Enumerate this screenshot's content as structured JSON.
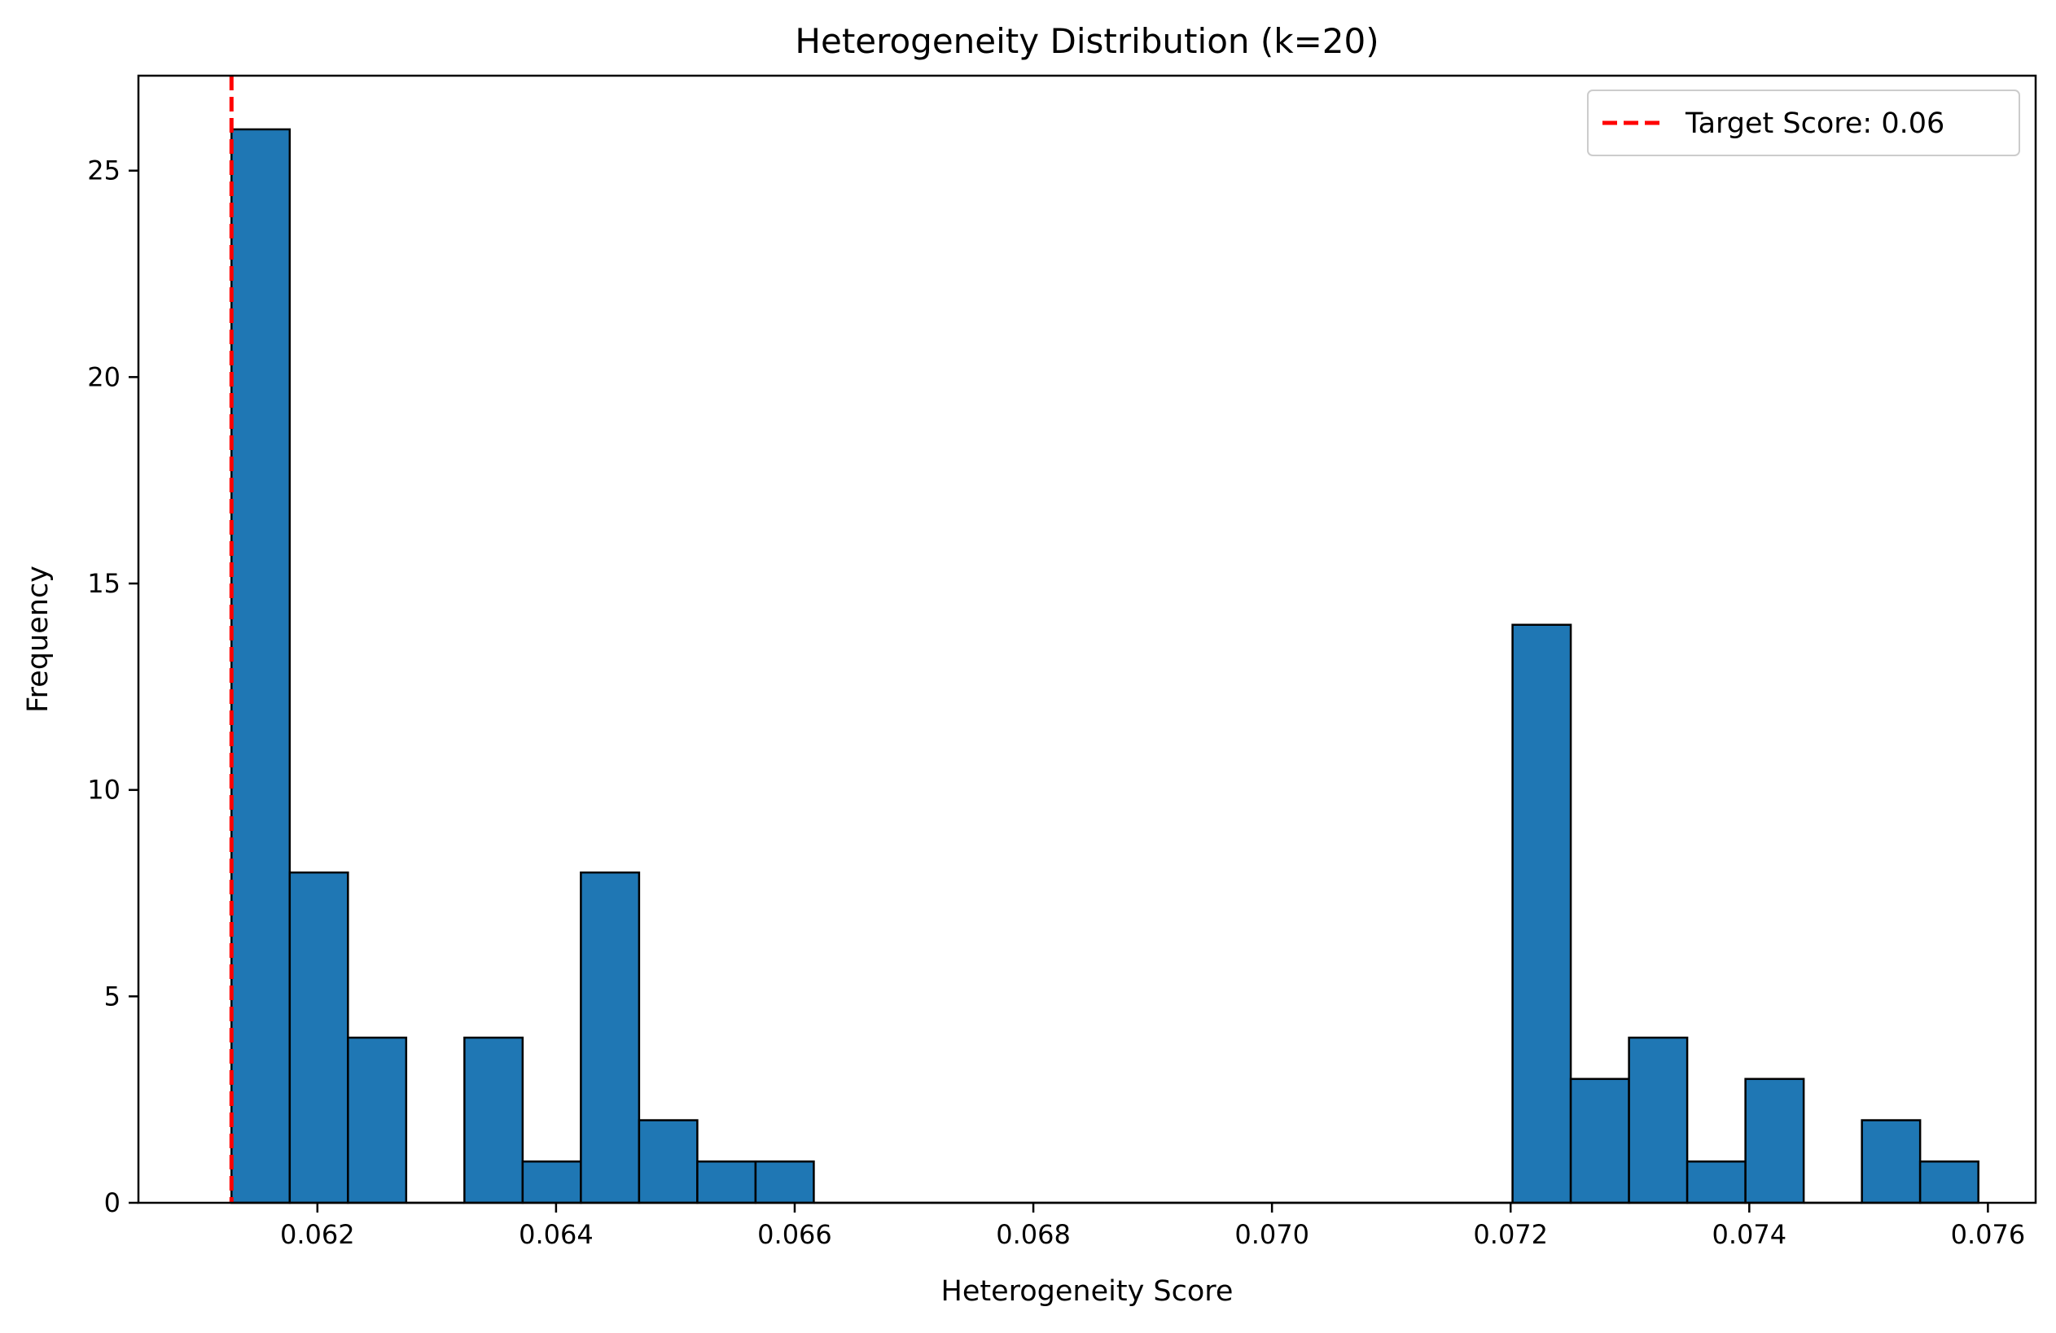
{
  "chart_data": {
    "type": "bar",
    "subtype": "histogram",
    "title": "Heterogeneity Distribution (k=20)",
    "xlabel": "Heterogeneity Score",
    "ylabel": "Frequency",
    "xlim": [
      0.0605,
      0.0764
    ],
    "ylim": [
      0,
      27.3
    ],
    "xticks": [
      "0.062",
      "0.064",
      "0.066",
      "0.068",
      "0.070",
      "0.072",
      "0.074",
      "0.076"
    ],
    "xtick_values": [
      0.062,
      0.064,
      0.066,
      0.068,
      0.07,
      0.072,
      0.074,
      0.076
    ],
    "yticks": [
      "0",
      "5",
      "10",
      "15",
      "20",
      "25"
    ],
    "ytick_values": [
      0,
      5,
      10,
      15,
      20,
      25
    ],
    "bin_start": 0.06128,
    "bin_width": 0.000488,
    "counts": [
      26,
      8,
      4,
      0,
      4,
      1,
      8,
      2,
      1,
      1,
      0,
      0,
      0,
      0,
      0,
      0,
      0,
      0,
      0,
      0,
      0,
      0,
      14,
      3,
      4,
      1,
      3,
      0,
      2,
      1
    ],
    "bar_color": "#1f77b4",
    "edge_color": "#000000",
    "reference_line": {
      "x": 0.06128,
      "label": "Target Score: 0.06",
      "color": "#ff0000",
      "style": "dashed"
    },
    "legend_position": "top-right",
    "grid": false
  }
}
